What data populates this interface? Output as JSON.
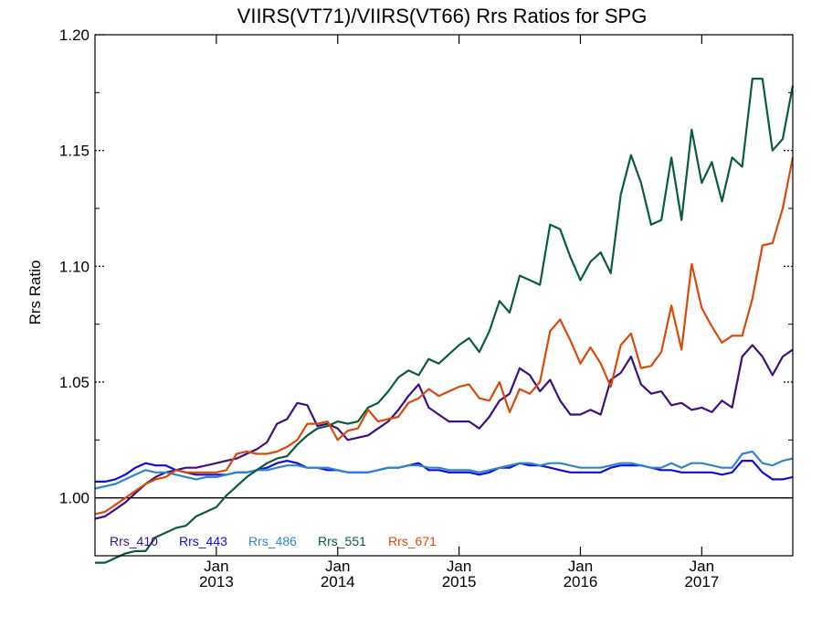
{
  "chart_data": {
    "type": "line",
    "title": "VIIRS(VT71)/VIIRS(VT66)  Rrs Ratios for SPG",
    "xlabel": "",
    "ylabel": "Rrs Ratio",
    "x_unit": "year (decimal)",
    "xlim": [
      2012.0,
      2017.75
    ],
    "ylim": [
      0.975,
      1.2
    ],
    "yticks": [
      {
        "value": 1.0,
        "label": "1.00"
      },
      {
        "value": 1.05,
        "label": "1.05"
      },
      {
        "value": 1.1,
        "label": "1.10"
      },
      {
        "value": 1.15,
        "label": "1.15"
      },
      {
        "value": 1.2,
        "label": "1.20"
      }
    ],
    "xticks": [
      {
        "value": 2013.0,
        "label_top": "Jan",
        "label_bottom": "2013"
      },
      {
        "value": 2014.0,
        "label_top": "Jan",
        "label_bottom": "2014"
      },
      {
        "value": 2015.0,
        "label_top": "Jan",
        "label_bottom": "2015"
      },
      {
        "value": 2016.0,
        "label_top": "Jan",
        "label_bottom": "2016"
      },
      {
        "value": 2017.0,
        "label_top": "Jan",
        "label_bottom": "2017"
      }
    ],
    "reference_line": 1.0,
    "legend_position": "bottom-left",
    "series": [
      {
        "name": "Rrs_410",
        "color": "#3d0f80",
        "x": [
          2012.0,
          2012.083,
          2012.167,
          2012.25,
          2012.333,
          2012.417,
          2012.5,
          2012.583,
          2012.667,
          2012.75,
          2012.833,
          2012.917,
          2013.0,
          2013.083,
          2013.167,
          2013.25,
          2013.333,
          2013.417,
          2013.5,
          2013.583,
          2013.667,
          2013.75,
          2013.833,
          2013.917,
          2014.0,
          2014.083,
          2014.167,
          2014.25,
          2014.333,
          2014.417,
          2014.5,
          2014.583,
          2014.667,
          2014.75,
          2014.833,
          2014.917,
          2015.0,
          2015.083,
          2015.167,
          2015.25,
          2015.333,
          2015.417,
          2015.5,
          2015.583,
          2015.667,
          2015.75,
          2015.833,
          2015.917,
          2016.0,
          2016.083,
          2016.167,
          2016.25,
          2016.333,
          2016.417,
          2016.5,
          2016.583,
          2016.667,
          2016.75,
          2016.833,
          2016.917,
          2017.0,
          2017.083,
          2017.167,
          2017.25,
          2017.333,
          2017.417,
          2017.5,
          2017.583,
          2017.667,
          2017.75
        ],
        "y": [
          0.991,
          0.992,
          0.995,
          0.998,
          1.002,
          1.006,
          1.009,
          1.011,
          1.012,
          1.013,
          1.013,
          1.014,
          1.015,
          1.016,
          1.017,
          1.019,
          1.021,
          1.024,
          1.032,
          1.034,
          1.041,
          1.04,
          1.031,
          1.032,
          1.03,
          1.025,
          1.026,
          1.027,
          1.03,
          1.033,
          1.038,
          1.044,
          1.049,
          1.039,
          1.036,
          1.033,
          1.033,
          1.033,
          1.03,
          1.035,
          1.042,
          1.045,
          1.056,
          1.053,
          1.046,
          1.051,
          1.042,
          1.036,
          1.036,
          1.038,
          1.036,
          1.051,
          1.054,
          1.061,
          1.049,
          1.045,
          1.046,
          1.04,
          1.041,
          1.038,
          1.039,
          1.037,
          1.042,
          1.039,
          1.061,
          1.066,
          1.061,
          1.053,
          1.061,
          1.064
        ]
      },
      {
        "name": "Rrs_443",
        "color": "#0f0fdc",
        "x": [
          2012.0,
          2012.083,
          2012.167,
          2012.25,
          2012.333,
          2012.417,
          2012.5,
          2012.583,
          2012.667,
          2012.75,
          2012.833,
          2012.917,
          2013.0,
          2013.083,
          2013.167,
          2013.25,
          2013.333,
          2013.417,
          2013.5,
          2013.583,
          2013.667,
          2013.75,
          2013.833,
          2013.917,
          2014.0,
          2014.083,
          2014.167,
          2014.25,
          2014.333,
          2014.417,
          2014.5,
          2014.583,
          2014.667,
          2014.75,
          2014.833,
          2014.917,
          2015.0,
          2015.083,
          2015.167,
          2015.25,
          2015.333,
          2015.417,
          2015.5,
          2015.583,
          2015.667,
          2015.75,
          2015.833,
          2015.917,
          2016.0,
          2016.083,
          2016.167,
          2016.25,
          2016.333,
          2016.417,
          2016.5,
          2016.583,
          2016.667,
          2016.75,
          2016.833,
          2016.917,
          2017.0,
          2017.083,
          2017.167,
          2017.25,
          2017.333,
          2017.417,
          2017.5,
          2017.583,
          2017.667,
          2017.75
        ],
        "y": [
          1.007,
          1.007,
          1.008,
          1.01,
          1.013,
          1.015,
          1.014,
          1.014,
          1.012,
          1.011,
          1.01,
          1.01,
          1.01,
          1.01,
          1.011,
          1.011,
          1.012,
          1.013,
          1.015,
          1.016,
          1.015,
          1.013,
          1.013,
          1.012,
          1.012,
          1.011,
          1.011,
          1.011,
          1.012,
          1.013,
          1.013,
          1.014,
          1.015,
          1.012,
          1.012,
          1.011,
          1.011,
          1.011,
          1.01,
          1.011,
          1.013,
          1.013,
          1.015,
          1.014,
          1.014,
          1.013,
          1.012,
          1.011,
          1.011,
          1.011,
          1.011,
          1.013,
          1.014,
          1.014,
          1.014,
          1.013,
          1.012,
          1.012,
          1.011,
          1.011,
          1.011,
          1.011,
          1.01,
          1.011,
          1.016,
          1.016,
          1.011,
          1.008,
          1.008,
          1.009
        ]
      },
      {
        "name": "Rrs_486",
        "color": "#2e86c9",
        "x": [
          2012.0,
          2012.083,
          2012.167,
          2012.25,
          2012.333,
          2012.417,
          2012.5,
          2012.583,
          2012.667,
          2012.75,
          2012.833,
          2012.917,
          2013.0,
          2013.083,
          2013.167,
          2013.25,
          2013.333,
          2013.417,
          2013.5,
          2013.583,
          2013.667,
          2013.75,
          2013.833,
          2013.917,
          2014.0,
          2014.083,
          2014.167,
          2014.25,
          2014.333,
          2014.417,
          2014.5,
          2014.583,
          2014.667,
          2014.75,
          2014.833,
          2014.917,
          2015.0,
          2015.083,
          2015.167,
          2015.25,
          2015.333,
          2015.417,
          2015.5,
          2015.583,
          2015.667,
          2015.75,
          2015.833,
          2015.917,
          2016.0,
          2016.083,
          2016.167,
          2016.25,
          2016.333,
          2016.417,
          2016.5,
          2016.583,
          2016.667,
          2016.75,
          2016.833,
          2016.917,
          2017.0,
          2017.083,
          2017.167,
          2017.25,
          2017.333,
          2017.417,
          2017.5,
          2017.583,
          2017.667,
          2017.75
        ],
        "y": [
          1.004,
          1.005,
          1.006,
          1.008,
          1.01,
          1.012,
          1.011,
          1.011,
          1.01,
          1.009,
          1.008,
          1.009,
          1.009,
          1.01,
          1.011,
          1.011,
          1.012,
          1.012,
          1.013,
          1.014,
          1.014,
          1.013,
          1.013,
          1.013,
          1.012,
          1.011,
          1.011,
          1.011,
          1.012,
          1.013,
          1.013,
          1.014,
          1.014,
          1.013,
          1.013,
          1.012,
          1.012,
          1.012,
          1.011,
          1.012,
          1.013,
          1.014,
          1.015,
          1.015,
          1.014,
          1.015,
          1.015,
          1.014,
          1.013,
          1.013,
          1.013,
          1.014,
          1.015,
          1.015,
          1.014,
          1.013,
          1.013,
          1.015,
          1.013,
          1.015,
          1.015,
          1.014,
          1.013,
          1.013,
          1.019,
          1.02,
          1.015,
          1.014,
          1.016,
          1.017
        ]
      },
      {
        "name": "Rrs_551",
        "color": "#0a5c3a",
        "x": [
          2012.0,
          2012.083,
          2012.167,
          2012.25,
          2012.333,
          2012.417,
          2012.5,
          2012.583,
          2012.667,
          2012.75,
          2012.833,
          2012.917,
          2013.0,
          2013.083,
          2013.167,
          2013.25,
          2013.333,
          2013.417,
          2013.5,
          2013.583,
          2013.667,
          2013.75,
          2013.833,
          2013.917,
          2014.0,
          2014.083,
          2014.167,
          2014.25,
          2014.333,
          2014.417,
          2014.5,
          2014.583,
          2014.667,
          2014.75,
          2014.833,
          2014.917,
          2015.0,
          2015.083,
          2015.167,
          2015.25,
          2015.333,
          2015.417,
          2015.5,
          2015.583,
          2015.667,
          2015.75,
          2015.833,
          2015.917,
          2016.0,
          2016.083,
          2016.167,
          2016.25,
          2016.333,
          2016.417,
          2016.5,
          2016.583,
          2016.667,
          2016.75,
          2016.833,
          2016.917,
          2017.0,
          2017.083,
          2017.167,
          2017.25,
          2017.333,
          2017.417,
          2017.5,
          2017.583,
          2017.667,
          2017.75
        ],
        "y": [
          0.972,
          0.972,
          0.974,
          0.976,
          0.977,
          0.977,
          0.983,
          0.985,
          0.987,
          0.988,
          0.992,
          0.994,
          0.996,
          1.001,
          1.005,
          1.009,
          1.012,
          1.015,
          1.017,
          1.018,
          1.023,
          1.027,
          1.03,
          1.031,
          1.033,
          1.032,
          1.033,
          1.039,
          1.041,
          1.046,
          1.052,
          1.055,
          1.053,
          1.06,
          1.058,
          1.062,
          1.066,
          1.069,
          1.063,
          1.072,
          1.085,
          1.08,
          1.096,
          1.094,
          1.092,
          1.118,
          1.116,
          1.104,
          1.094,
          1.102,
          1.106,
          1.097,
          1.131,
          1.148,
          1.136,
          1.118,
          1.12,
          1.147,
          1.12,
          1.159,
          1.136,
          1.145,
          1.128,
          1.147,
          1.143,
          1.181,
          1.181,
          1.15,
          1.155,
          1.178
        ]
      },
      {
        "name": "Rrs_671",
        "color": "#d94a0a",
        "x": [
          2012.0,
          2012.083,
          2012.167,
          2012.25,
          2012.333,
          2012.417,
          2012.5,
          2012.583,
          2012.667,
          2012.75,
          2012.833,
          2012.917,
          2013.0,
          2013.083,
          2013.167,
          2013.25,
          2013.333,
          2013.417,
          2013.5,
          2013.583,
          2013.667,
          2013.75,
          2013.833,
          2013.917,
          2014.0,
          2014.083,
          2014.167,
          2014.25,
          2014.333,
          2014.417,
          2014.5,
          2014.583,
          2014.667,
          2014.75,
          2014.833,
          2014.917,
          2015.0,
          2015.083,
          2015.167,
          2015.25,
          2015.333,
          2015.417,
          2015.5,
          2015.583,
          2015.667,
          2015.75,
          2015.833,
          2015.917,
          2016.0,
          2016.083,
          2016.167,
          2016.25,
          2016.333,
          2016.417,
          2016.5,
          2016.583,
          2016.667,
          2016.75,
          2016.833,
          2016.917,
          2017.0,
          2017.083,
          2017.167,
          2017.25,
          2017.333,
          2017.417,
          2017.5,
          2017.583,
          2017.667,
          2017.75
        ],
        "y": [
          0.993,
          0.994,
          0.997,
          1.0,
          1.003,
          1.006,
          1.008,
          1.009,
          1.012,
          1.011,
          1.011,
          1.011,
          1.011,
          1.012,
          1.019,
          1.02,
          1.019,
          1.019,
          1.02,
          1.022,
          1.025,
          1.032,
          1.032,
          1.033,
          1.025,
          1.029,
          1.03,
          1.038,
          1.033,
          1.034,
          1.035,
          1.041,
          1.043,
          1.047,
          1.044,
          1.046,
          1.048,
          1.049,
          1.043,
          1.042,
          1.05,
          1.037,
          1.047,
          1.045,
          1.05,
          1.072,
          1.077,
          1.068,
          1.058,
          1.065,
          1.058,
          1.048,
          1.066,
          1.071,
          1.056,
          1.057,
          1.063,
          1.083,
          1.064,
          1.101,
          1.082,
          1.074,
          1.067,
          1.07,
          1.07,
          1.086,
          1.109,
          1.11,
          1.125,
          1.147
        ]
      }
    ]
  }
}
